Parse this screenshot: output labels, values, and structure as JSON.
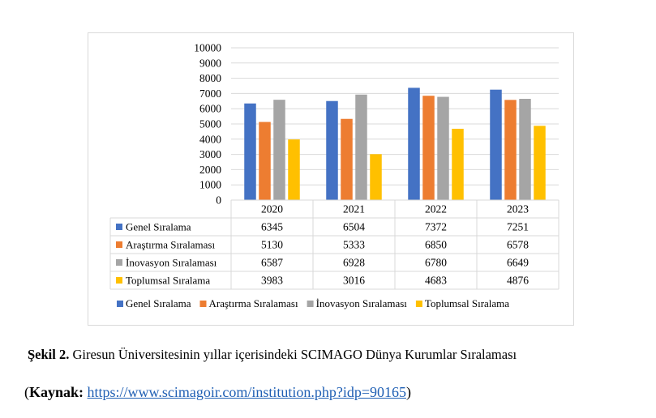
{
  "chart_data": {
    "type": "bar",
    "categories": [
      "2020",
      "2021",
      "2022",
      "2023"
    ],
    "series": [
      {
        "name": "Genel Sıralama",
        "color": "#4472c4",
        "values": [
          6345,
          6504,
          7372,
          7251
        ]
      },
      {
        "name": "Araştırma Sıralaması",
        "color": "#ed7d31",
        "values": [
          5130,
          5333,
          6850,
          6578
        ]
      },
      {
        "name": "İnovasyon Sıralaması",
        "color": "#a5a5a5",
        "values": [
          6587,
          6928,
          6780,
          6649
        ]
      },
      {
        "name": "Toplumsal Sıralama",
        "color": "#ffc000",
        "values": [
          3983,
          3016,
          4683,
          4876
        ]
      }
    ],
    "ylim": [
      0,
      10000
    ],
    "yticks": [
      "0",
      "1000",
      "2000",
      "3000",
      "4000",
      "5000",
      "6000",
      "7000",
      "8000",
      "9000",
      "10000"
    ],
    "grid": true,
    "legend": "bottom",
    "data_table": true
  },
  "caption": {
    "label": "Şekil 2.",
    "text": "Giresun Üniversitesinin yıllar içerisindeki SCIMAGO Dünya Kurumlar Sıralaması"
  },
  "source": {
    "open": "(",
    "label": "Kaynak:",
    "url_text": "https://www.scimagoir.com/institution.php?idp=90165",
    "close": ")"
  }
}
